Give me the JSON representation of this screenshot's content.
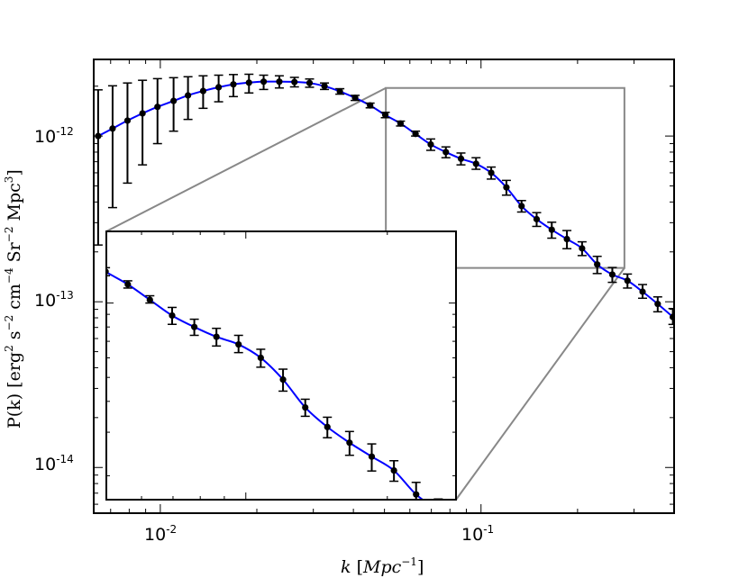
{
  "chart_data": {
    "type": "line",
    "xlabel": {
      "main": "k",
      "unit_open": "[",
      "unit": "Mpc",
      "unit_exp": "−1",
      "unit_close": "]"
    },
    "ylabel": {
      "prefix": "P(k) [erg",
      "e1": "2",
      "s": " s",
      "e2": "−2",
      "cm": " cm",
      "e3": "−4",
      "sr": " Sr",
      "e4": "−2",
      "mpc": " Mpc",
      "e5": "3",
      "suffix": "]"
    },
    "xscale": "log",
    "yscale": "log",
    "xlim": [
      0.0062,
      0.4
    ],
    "ylim": [
      5.3e-15,
      2.9e-12
    ],
    "x_ticks": [
      {
        "value": 0.01,
        "base": "10",
        "exp": "-2"
      },
      {
        "value": 0.1,
        "base": "10",
        "exp": "-1"
      }
    ],
    "y_ticks": [
      {
        "value": 1e-14,
        "base": "10",
        "exp": "-14"
      },
      {
        "value": 1e-13,
        "base": "10",
        "exp": "-13"
      },
      {
        "value": 1e-12,
        "base": "10",
        "exp": "-12"
      }
    ],
    "grid": false,
    "curve_color": "#0000ff",
    "points_color": "#000000",
    "zoom_box_color": "#888888",
    "series": [
      {
        "x": [
          0.0064,
          0.0071,
          0.0079,
          0.0088,
          0.0098,
          0.011,
          0.0122,
          0.0136,
          0.0152,
          0.0169,
          0.0189,
          0.021,
          0.0235,
          0.0262,
          0.0292,
          0.0325,
          0.0363,
          0.0405,
          0.0451,
          0.0503,
          0.0561,
          0.0625,
          0.0697,
          0.0777,
          0.0866,
          0.0965,
          0.1076,
          0.12,
          0.1338,
          0.1491,
          0.1662,
          0.1853,
          0.2066,
          0.2303,
          0.2567,
          0.2862,
          0.319,
          0.3556,
          0.3965
        ],
        "y": [
          1e-12,
          1.11e-12,
          1.24e-12,
          1.37e-12,
          1.5e-12,
          1.63e-12,
          1.76e-12,
          1.87e-12,
          1.97e-12,
          2.05e-12,
          2.1e-12,
          2.13e-12,
          2.13e-12,
          2.12e-12,
          2.09e-12,
          2e-12,
          1.86e-12,
          1.7e-12,
          1.53e-12,
          1.34e-12,
          1.19e-12,
          1.03e-12,
          8.9e-13,
          8e-13,
          7.3e-13,
          6.8e-13,
          6e-13,
          4.9e-13,
          3.78e-13,
          3.15e-13,
          2.72e-13,
          2.39e-13,
          2.1e-13,
          1.68e-13,
          1.46e-13,
          1.34e-13,
          1.15e-13,
          9.7e-14,
          8.1e-14
        ],
        "yerr_lower": [
          7.8e-13,
          7.4e-13,
          7.2e-13,
          7e-13,
          6e-13,
          5.6e-13,
          5e-13,
          4e-13,
          3.6e-13,
          3.2e-13,
          2.8e-13,
          2.2e-13,
          1.8e-13,
          1.4e-13,
          1.2e-13,
          9e-14,
          7e-14,
          6e-14,
          5e-14,
          5e-14,
          4e-14,
          3e-14,
          7e-14,
          6e-14,
          6e-14,
          5e-14,
          5e-14,
          5e-14,
          3e-14,
          3e-14,
          3e-14,
          3e-14,
          2e-14,
          2e-14,
          1.5e-14,
          1.3e-14,
          1e-14,
          1e-14,
          8e-15
        ],
        "yerr_upper": [
          9e-13,
          9e-13,
          8.5e-13,
          8e-13,
          7.2e-13,
          6.2e-13,
          5.2e-13,
          4.4e-13,
          3.6e-13,
          3e-13,
          2.6e-13,
          2e-13,
          1.8e-13,
          1.4e-13,
          1.2e-13,
          9e-14,
          7e-14,
          6e-14,
          5e-14,
          5e-14,
          4e-14,
          4e-14,
          7e-14,
          6e-14,
          6e-14,
          6e-14,
          5e-14,
          5e-14,
          3e-14,
          3e-14,
          3e-14,
          3e-14,
          2e-14,
          2e-14,
          1.5e-14,
          1.3e-14,
          1.2e-14,
          1e-14,
          1e-14
        ]
      }
    ],
    "inset": {
      "xlim": [
        0.0505,
        0.28
      ],
      "ylim": [
        1.6e-13,
        1.95e-12
      ],
      "xscale": "log",
      "yscale": "log",
      "tick_labels": false
    }
  }
}
